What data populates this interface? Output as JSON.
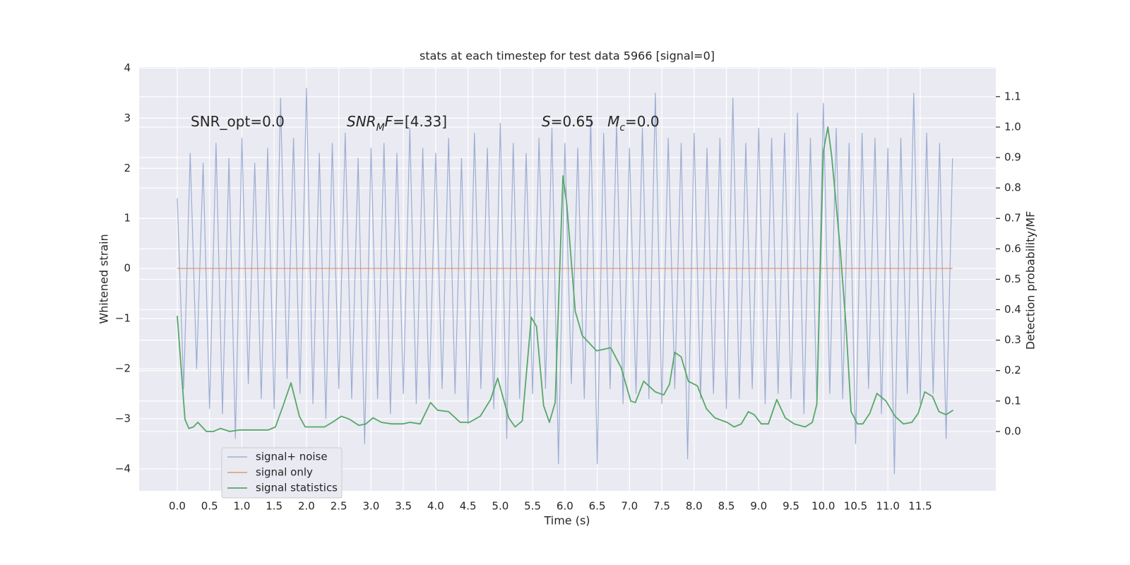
{
  "chart_data": {
    "type": "line",
    "title": "stats at each timestep for test data 5966 [signal=0]",
    "xlabel": "Time (s)",
    "ylabel": "Whitened strain",
    "y2label": "Detection probability/MF",
    "xlim": [
      -0.59,
      12.67
    ],
    "ylim": [
      -4.44,
      4.02
    ],
    "y2lim": [
      -0.195,
      1.197
    ],
    "xticks": [
      {
        "value": 0,
        "label": "0.0"
      },
      0.5,
      {
        "value": 1,
        "label": "1.0"
      },
      1.5,
      {
        "value": 2,
        "label": "2.0"
      },
      2.5,
      {
        "value": 3,
        "label": "3.0"
      },
      3.5,
      {
        "value": 4,
        "label": "4.0"
      },
      4.5,
      {
        "value": 5,
        "label": "5.0"
      },
      5.5,
      {
        "value": 6,
        "label": "6.0"
      },
      6.5,
      {
        "value": 7,
        "label": "7.0"
      },
      7.5,
      {
        "value": 8,
        "label": "8.0"
      },
      8.5,
      {
        "value": 9,
        "label": "9.0"
      },
      9.5,
      {
        "value": 10,
        "label": "10.0"
      },
      10.5,
      {
        "value": 11,
        "label": "11.0"
      },
      11.5
    ],
    "yticks": [
      {
        "value": -4,
        "label": "−4"
      },
      {
        "value": -3,
        "label": "−3"
      },
      {
        "value": -2,
        "label": "−2"
      },
      {
        "value": -1,
        "label": "−1"
      },
      0,
      1,
      2,
      3,
      4
    ],
    "y2ticks": [
      {
        "value": 0,
        "label": "0.0"
      },
      0.1,
      0.2,
      0.3,
      0.4,
      0.5,
      0.6,
      0.7,
      0.8,
      0.9,
      {
        "value": 1,
        "label": "1.0"
      },
      1.1
    ],
    "grid": true,
    "legend": "lower left",
    "annotations": [
      [
        {
          "text": "SNR_opt=0.0"
        }
      ],
      [
        {
          "text": "SNR",
          "italic": true
        },
        {
          "text": "M",
          "italic": true,
          "sub": true
        },
        {
          "text": "F",
          "italic": true
        },
        {
          "text": "=[4.33]"
        }
      ],
      [
        {
          "text": "S",
          "italic": true
        },
        {
          "text": "=0.65   "
        },
        {
          "text": "M",
          "italic": true
        },
        {
          "text": "c",
          "italic": true,
          "sub": true
        },
        {
          "text": "=0.0"
        }
      ]
    ],
    "series": [
      {
        "name": "signal+ noise",
        "color": "#8ea2cc",
        "x": [
          0.0,
          0.1,
          0.2,
          0.3,
          0.4,
          0.5,
          0.6,
          0.7,
          0.8,
          0.9,
          1.0,
          1.1,
          1.2,
          1.3,
          1.4,
          1.5,
          1.6,
          1.7,
          1.8,
          1.9,
          2.0,
          2.1,
          2.2,
          2.3,
          2.4,
          2.5,
          2.6,
          2.7,
          2.8,
          2.9,
          3.0,
          3.1,
          3.2,
          3.3,
          3.4,
          3.5,
          3.6,
          3.7,
          3.8,
          3.9,
          4.0,
          4.1,
          4.2,
          4.3,
          4.4,
          4.5,
          4.6,
          4.7,
          4.8,
          4.9,
          5.0,
          5.1,
          5.2,
          5.3,
          5.4,
          5.5,
          5.6,
          5.7,
          5.8,
          5.9,
          6.0,
          6.1,
          6.2,
          6.3,
          6.4,
          6.5,
          6.6,
          6.7,
          6.8,
          6.9,
          7.0,
          7.1,
          7.2,
          7.3,
          7.4,
          7.5,
          7.6,
          7.7,
          7.8,
          7.9,
          8.0,
          8.1,
          8.2,
          8.3,
          8.4,
          8.5,
          8.6,
          8.7,
          8.8,
          8.9,
          9.0,
          9.1,
          9.2,
          9.3,
          9.4,
          9.5,
          9.6,
          9.7,
          9.8,
          9.9,
          10.0,
          10.1,
          10.2,
          10.3,
          10.4,
          10.5,
          10.6,
          10.7,
          10.8,
          10.9,
          11.0,
          11.1,
          11.2,
          11.3,
          11.4,
          11.5,
          11.6,
          11.7,
          11.8,
          11.9,
          12.0
        ],
        "values": [
          1.4,
          -2.4,
          2.3,
          -2.0,
          2.1,
          -2.8,
          2.5,
          -2.9,
          2.2,
          -3.4,
          2.6,
          -2.3,
          2.1,
          -2.6,
          2.4,
          -2.8,
          3.4,
          -2.2,
          2.6,
          -2.5,
          3.6,
          -2.7,
          2.3,
          -3.0,
          2.5,
          -2.4,
          2.7,
          -2.6,
          2.2,
          -3.5,
          2.4,
          -2.6,
          2.5,
          -2.9,
          2.3,
          -2.5,
          2.8,
          -2.7,
          2.4,
          -2.6,
          2.3,
          -2.4,
          2.6,
          -2.5,
          2.2,
          -3.1,
          2.7,
          -2.4,
          2.4,
          -2.8,
          2.9,
          -3.4,
          2.5,
          -2.6,
          2.3,
          -2.5,
          2.6,
          -2.4,
          2.8,
          -3.9,
          2.5,
          -2.3,
          2.4,
          -2.6,
          3.0,
          -3.9,
          2.7,
          -2.4,
          2.9,
          -2.7,
          2.4,
          -2.5,
          2.8,
          -2.6,
          3.5,
          -2.7,
          2.6,
          -2.4,
          2.5,
          -3.8,
          2.7,
          -2.6,
          2.4,
          -2.5,
          2.6,
          -2.8,
          3.4,
          -2.6,
          2.5,
          -2.4,
          2.8,
          -2.7,
          2.6,
          -2.5,
          2.7,
          -2.6,
          3.1,
          -2.9,
          2.6,
          -2.7,
          3.3,
          -2.5,
          2.8,
          -2.6,
          2.5,
          -3.5,
          2.7,
          -2.4,
          2.6,
          -2.9,
          2.4,
          -4.1,
          2.6,
          -2.5,
          3.5,
          -2.7,
          2.7,
          -2.5,
          2.5,
          -3.4,
          2.2
        ]
      },
      {
        "name": "signal only",
        "color": "#dd8452",
        "x": [
          0.0,
          12.0
        ],
        "values": [
          0,
          0
        ]
      },
      {
        "name": "signal statistics",
        "color": "#55a868",
        "axis": "y2",
        "x": [
          0,
          0.12,
          0.18,
          0.25,
          0.32,
          0.45,
          0.56,
          0.67,
          0.81,
          0.97,
          1.19,
          1.41,
          1.52,
          1.63,
          1.76,
          1.89,
          1.98,
          2.12,
          2.28,
          2.4,
          2.54,
          2.67,
          2.81,
          2.92,
          3.03,
          3.16,
          3.32,
          3.49,
          3.6,
          3.76,
          3.92,
          4.03,
          4.2,
          4.38,
          4.52,
          4.69,
          4.85,
          4.96,
          5.13,
          5.23,
          5.34,
          5.48,
          5.56,
          5.67,
          5.76,
          5.85,
          5.97,
          6.03,
          6.16,
          6.27,
          6.49,
          6.71,
          6.87,
          7.02,
          7.09,
          7.22,
          7.4,
          7.53,
          7.62,
          7.7,
          7.8,
          7.91,
          8.05,
          8.19,
          8.32,
          8.51,
          8.62,
          8.73,
          8.84,
          8.93,
          9.04,
          9.15,
          9.28,
          9.41,
          9.55,
          9.72,
          9.83,
          9.9,
          10.0,
          10.07,
          10.13,
          10.26,
          10.35,
          10.43,
          10.53,
          10.61,
          10.72,
          10.83,
          10.97,
          11.11,
          11.24,
          11.37,
          11.47,
          11.57,
          11.69,
          11.79,
          11.9,
          12.01
        ],
        "values": [
          0.38,
          0.04,
          0.01,
          0.015,
          0.03,
          0.0,
          0.0,
          0.01,
          0.0,
          0.005,
          0.005,
          0.005,
          0.015,
          0.08,
          0.16,
          0.05,
          0.015,
          0.015,
          0.015,
          0.03,
          0.05,
          0.04,
          0.02,
          0.025,
          0.045,
          0.03,
          0.025,
          0.025,
          0.03,
          0.025,
          0.095,
          0.07,
          0.065,
          0.03,
          0.03,
          0.05,
          0.105,
          0.175,
          0.045,
          0.015,
          0.035,
          0.375,
          0.345,
          0.085,
          0.03,
          0.095,
          0.84,
          0.745,
          0.395,
          0.315,
          0.265,
          0.275,
          0.21,
          0.1,
          0.095,
          0.165,
          0.13,
          0.12,
          0.155,
          0.26,
          0.245,
          0.165,
          0.15,
          0.075,
          0.045,
          0.03,
          0.015,
          0.025,
          0.065,
          0.055,
          0.025,
          0.025,
          0.105,
          0.045,
          0.025,
          0.015,
          0.03,
          0.09,
          0.92,
          1.0,
          0.905,
          0.605,
          0.35,
          0.065,
          0.025,
          0.025,
          0.06,
          0.125,
          0.1,
          0.05,
          0.025,
          0.03,
          0.06,
          0.13,
          0.115,
          0.065,
          0.055,
          0.07
        ]
      }
    ]
  }
}
